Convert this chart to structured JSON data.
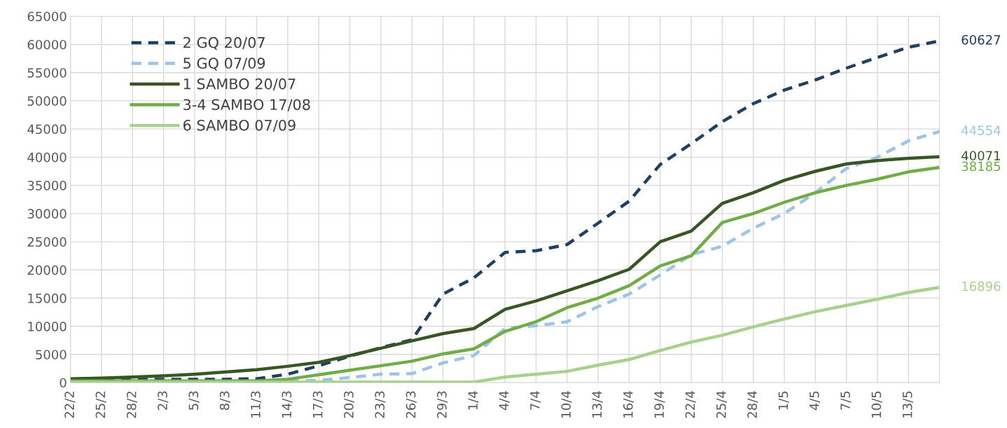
{
  "chart_data": {
    "type": "line",
    "categories": [
      "22/2",
      "25/2",
      "28/2",
      "2/3",
      "5/3",
      "8/3",
      "11/3",
      "14/3",
      "17/3",
      "20/3",
      "23/3",
      "26/3",
      "29/3",
      "1/4",
      "4/4",
      "7/4",
      "10/4",
      "13/4",
      "16/4",
      "19/4",
      "22/4",
      "25/4",
      "28/4",
      "1/5",
      "4/5",
      "7/5",
      "10/5",
      "13/5",
      null
    ],
    "ylim": [
      0,
      65000
    ],
    "yticks": [
      0,
      5000,
      10000,
      15000,
      20000,
      25000,
      30000,
      35000,
      40000,
      45000,
      50000,
      55000,
      60000,
      65000
    ],
    "grid": true,
    "legend": "top left",
    "marker": "none",
    "series": [
      {
        "name": "2 GQ 20/07",
        "color": "#1f3f63",
        "line_style": "dashed",
        "values": [
          500,
          500,
          600,
          600,
          600,
          600,
          700,
          1500,
          3000,
          4700,
          6200,
          7600,
          15700,
          18600,
          23100,
          23400,
          24500,
          28300,
          32200,
          38700,
          42400,
          46300,
          49500,
          51900,
          53700,
          55800,
          57700,
          59500,
          60627
        ],
        "value_labels": [
          null,
          null,
          null,
          null,
          null,
          null,
          null,
          null,
          null,
          null,
          null,
          null,
          null,
          null,
          null,
          null,
          null,
          null,
          null,
          null,
          null,
          null,
          null,
          null,
          null,
          null,
          null,
          null,
          "60627"
        ]
      },
      {
        "name": "5 GQ 07/09",
        "color": "#9dc3e6",
        "line_style": "dashed",
        "values": [
          200,
          200,
          200,
          200,
          200,
          200,
          200,
          300,
          400,
          900,
          1500,
          1600,
          3500,
          4800,
          9600,
          10100,
          10800,
          13500,
          15700,
          19100,
          22700,
          24200,
          27400,
          30000,
          33700,
          38000,
          40000,
          42900,
          44554
        ],
        "value_labels": [
          null,
          null,
          null,
          null,
          null,
          null,
          null,
          null,
          null,
          null,
          null,
          null,
          null,
          null,
          null,
          null,
          null,
          null,
          null,
          null,
          null,
          null,
          null,
          null,
          null,
          null,
          null,
          null,
          "44554"
        ]
      },
      {
        "name": "1 SAMBO 20/07",
        "color": "#375623",
        "line_style": "solid",
        "values": [
          700,
          800,
          1000,
          1200,
          1500,
          1900,
          2300,
          2900,
          3600,
          4800,
          6100,
          7400,
          8700,
          9600,
          13000,
          14500,
          16300,
          18100,
          20100,
          25000,
          26900,
          31800,
          33700,
          35900,
          37500,
          38800,
          39400,
          39800,
          40071
        ],
        "value_labels": [
          null,
          null,
          null,
          null,
          null,
          null,
          null,
          null,
          null,
          null,
          null,
          null,
          null,
          null,
          null,
          null,
          null,
          null,
          null,
          null,
          null,
          null,
          null,
          null,
          null,
          null,
          null,
          null,
          "40071"
        ]
      },
      {
        "name": "3-4 SAMBO 17/08",
        "color": "#70ad47",
        "line_style": "solid",
        "values": [
          300,
          300,
          300,
          300,
          300,
          300,
          300,
          600,
          1400,
          2200,
          3000,
          3800,
          5100,
          6000,
          9100,
          10800,
          13300,
          15000,
          17200,
          20700,
          22500,
          28400,
          30000,
          32000,
          33700,
          35000,
          36100,
          37400,
          38185
        ],
        "value_labels": [
          null,
          null,
          null,
          null,
          null,
          null,
          null,
          null,
          null,
          null,
          null,
          null,
          null,
          null,
          null,
          null,
          null,
          null,
          null,
          null,
          null,
          null,
          null,
          null,
          null,
          null,
          null,
          null,
          "38185"
        ]
      },
      {
        "name": "6 SAMBO 07/09",
        "color": "#a9d18e",
        "line_style": "solid",
        "values": [
          100,
          100,
          100,
          100,
          100,
          100,
          100,
          100,
          100,
          100,
          100,
          100,
          100,
          100,
          1000,
          1500,
          2000,
          3100,
          4100,
          5700,
          7200,
          8400,
          9900,
          11300,
          12600,
          13700,
          14800,
          16000,
          16896
        ],
        "value_labels": [
          null,
          null,
          null,
          null,
          null,
          null,
          null,
          null,
          null,
          null,
          null,
          null,
          null,
          null,
          null,
          null,
          null,
          null,
          null,
          null,
          null,
          null,
          null,
          null,
          null,
          null,
          null,
          null,
          "16896"
        ]
      }
    ]
  }
}
